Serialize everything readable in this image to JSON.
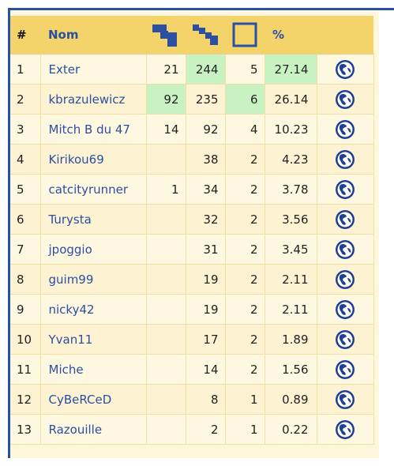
{
  "header": {
    "rank": "#",
    "name": "Nom",
    "col1_icon": "blue-step-shape-icon",
    "col2_icon": "blue-dotted-step-icon",
    "col3_icon": "empty-square-icon",
    "percent": "%"
  },
  "rows": [
    {
      "rank": "1",
      "name": "Exter",
      "c1": "21",
      "c2": "244",
      "c3": "5",
      "pct": "27.14",
      "hi": [
        "c2",
        "pct"
      ]
    },
    {
      "rank": "2",
      "name": "kbrazulewicz",
      "c1": "92",
      "c2": "235",
      "c3": "6",
      "pct": "26.14",
      "hi": [
        "c1",
        "c3"
      ]
    },
    {
      "rank": "3",
      "name": "Mitch B du 47",
      "c1": "14",
      "c2": "92",
      "c3": "4",
      "pct": "10.23",
      "hi": []
    },
    {
      "rank": "4",
      "name": "Kirikou69",
      "c1": "",
      "c2": "38",
      "c3": "2",
      "pct": "4.23",
      "hi": []
    },
    {
      "rank": "5",
      "name": "catcityrunner",
      "c1": "1",
      "c2": "34",
      "c3": "2",
      "pct": "3.78",
      "hi": []
    },
    {
      "rank": "6",
      "name": "Turysta",
      "c1": "",
      "c2": "32",
      "c3": "2",
      "pct": "3.56",
      "hi": []
    },
    {
      "rank": "7",
      "name": "jpoggio",
      "c1": "",
      "c2": "31",
      "c3": "2",
      "pct": "3.45",
      "hi": []
    },
    {
      "rank": "8",
      "name": "guim99",
      "c1": "",
      "c2": "19",
      "c3": "2",
      "pct": "2.11",
      "hi": []
    },
    {
      "rank": "9",
      "name": "nicky42",
      "c1": "",
      "c2": "19",
      "c3": "2",
      "pct": "2.11",
      "hi": []
    },
    {
      "rank": "10",
      "name": "Yvan11",
      "c1": "",
      "c2": "17",
      "c3": "2",
      "pct": "1.89",
      "hi": []
    },
    {
      "rank": "11",
      "name": "Miche",
      "c1": "",
      "c2": "14",
      "c3": "2",
      "pct": "1.56",
      "hi": []
    },
    {
      "rank": "12",
      "name": "CyBeRCeD",
      "c1": "",
      "c2": "8",
      "c3": "1",
      "pct": "0.89",
      "hi": []
    },
    {
      "rank": "13",
      "name": "Razouille",
      "c1": "",
      "c2": "2",
      "c3": "1",
      "pct": "0.22",
      "hi": []
    }
  ],
  "row_icon": "globe-icon",
  "colors": {
    "accent": "#2a4fa3",
    "header_bg": "#f3d36a",
    "highlight": "#c9f2c2",
    "page_bg": "#fdf7dc"
  }
}
